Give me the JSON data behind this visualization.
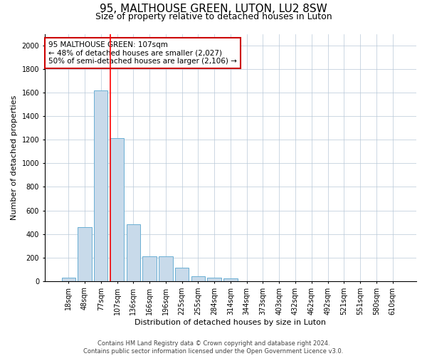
{
  "title": "95, MALTHOUSE GREEN, LUTON, LU2 8SW",
  "subtitle": "Size of property relative to detached houses in Luton",
  "xlabel": "Distribution of detached houses by size in Luton",
  "ylabel": "Number of detached properties",
  "categories": [
    "18sqm",
    "48sqm",
    "77sqm",
    "107sqm",
    "136sqm",
    "166sqm",
    "196sqm",
    "225sqm",
    "255sqm",
    "284sqm",
    "314sqm",
    "344sqm",
    "373sqm",
    "403sqm",
    "432sqm",
    "462sqm",
    "492sqm",
    "521sqm",
    "551sqm",
    "580sqm",
    "610sqm"
  ],
  "values": [
    30,
    460,
    1620,
    1215,
    480,
    210,
    210,
    115,
    40,
    30,
    20,
    0,
    0,
    0,
    0,
    0,
    0,
    0,
    0,
    0,
    0
  ],
  "bar_color": "#c8daea",
  "bar_edge_color": "#6aafd4",
  "red_line_index": 3,
  "annotation_line1": "95 MALTHOUSE GREEN: 107sqm",
  "annotation_line2": "← 48% of detached houses are smaller (2,027)",
  "annotation_line3": "50% of semi-detached houses are larger (2,106) →",
  "annotation_box_color": "#ffffff",
  "annotation_box_edge": "#cc0000",
  "ylim": [
    0,
    2100
  ],
  "yticks": [
    0,
    200,
    400,
    600,
    800,
    1000,
    1200,
    1400,
    1600,
    1800,
    2000
  ],
  "grid_color": "#b8c8d8",
  "footer_line1": "Contains HM Land Registry data © Crown copyright and database right 2024.",
  "footer_line2": "Contains public sector information licensed under the Open Government Licence v3.0.",
  "title_fontsize": 11,
  "subtitle_fontsize": 9,
  "axis_label_fontsize": 8,
  "tick_fontsize": 7,
  "annotation_fontsize": 7.5,
  "footer_fontsize": 6
}
